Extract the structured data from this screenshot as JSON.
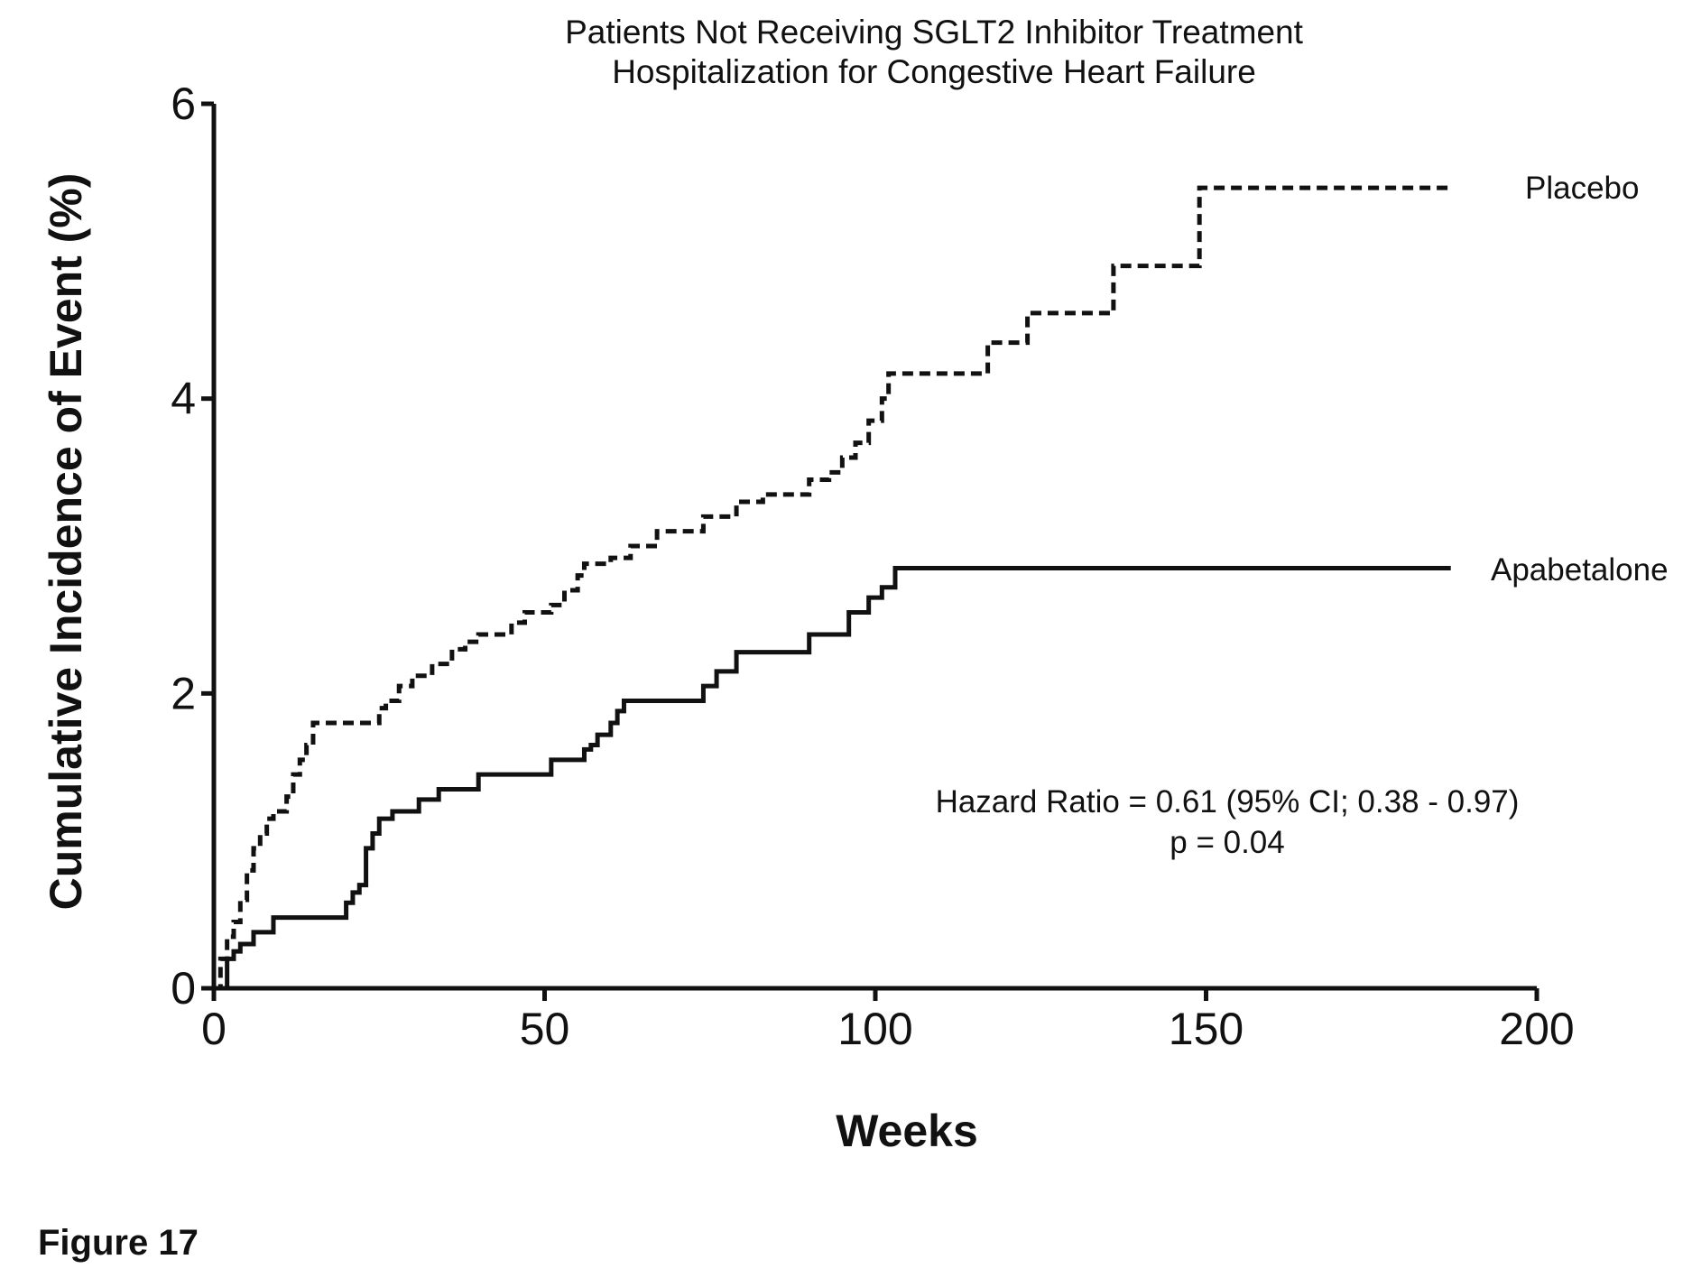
{
  "figure_caption": "Figure 17",
  "chart_data": {
    "type": "line",
    "title": [
      "Patients Not Receiving SGLT2  Inhibitor  Treatment",
      "Hospitalization for Congestive Heart Failure"
    ],
    "xlabel": "Weeks",
    "ylabel": "Cumulative Incidence of Event (%)",
    "xlim": [
      0,
      200
    ],
    "ylim": [
      0,
      6
    ],
    "xticks": [
      0,
      50,
      100,
      150,
      200
    ],
    "yticks": [
      0,
      2,
      4,
      6
    ],
    "grid": false,
    "line_shape": "step",
    "annotations": [
      "Hazard Ratio = 0.61 (95% CI;  0.38 - 0.97)",
      "p = 0.04"
    ],
    "series": [
      {
        "name": "Placebo",
        "style": "dashed",
        "color": "#111111",
        "x": [
          0,
          1,
          2,
          3,
          4,
          5,
          6,
          7,
          8,
          9,
          11,
          12,
          13,
          14,
          15,
          25,
          26,
          28,
          30,
          33,
          36,
          38,
          40,
          45,
          47,
          51,
          53,
          55,
          56,
          60,
          63,
          67,
          74,
          79,
          83,
          90,
          93,
          95,
          97,
          99,
          101,
          102,
          117,
          123,
          136,
          149,
          187
        ],
        "y": [
          0,
          0.2,
          0.35,
          0.45,
          0.6,
          0.8,
          0.95,
          1.05,
          1.15,
          1.2,
          1.3,
          1.45,
          1.55,
          1.65,
          1.8,
          1.9,
          1.95,
          2.05,
          2.12,
          2.2,
          2.3,
          2.35,
          2.4,
          2.48,
          2.55,
          2.6,
          2.7,
          2.8,
          2.88,
          2.92,
          3.0,
          3.1,
          3.2,
          3.3,
          3.35,
          3.45,
          3.5,
          3.6,
          3.7,
          3.85,
          4.0,
          4.17,
          4.38,
          4.58,
          4.9,
          5.43,
          5.43
        ]
      },
      {
        "name": "Apabetalone",
        "style": "solid",
        "color": "#111111",
        "x": [
          0,
          2,
          3,
          4,
          6,
          9,
          20,
          21,
          22,
          23,
          24,
          25,
          27,
          31,
          34,
          40,
          51,
          56,
          57,
          58,
          60,
          61,
          62,
          74,
          76,
          79,
          90,
          96,
          99,
          101,
          103,
          187
        ],
        "y": [
          0,
          0.2,
          0.25,
          0.3,
          0.38,
          0.48,
          0.58,
          0.65,
          0.7,
          0.95,
          1.05,
          1.15,
          1.2,
          1.28,
          1.35,
          1.45,
          1.55,
          1.62,
          1.65,
          1.72,
          1.8,
          1.88,
          1.95,
          2.05,
          2.15,
          2.28,
          2.4,
          2.55,
          2.65,
          2.72,
          2.85,
          2.85
        ]
      }
    ]
  }
}
